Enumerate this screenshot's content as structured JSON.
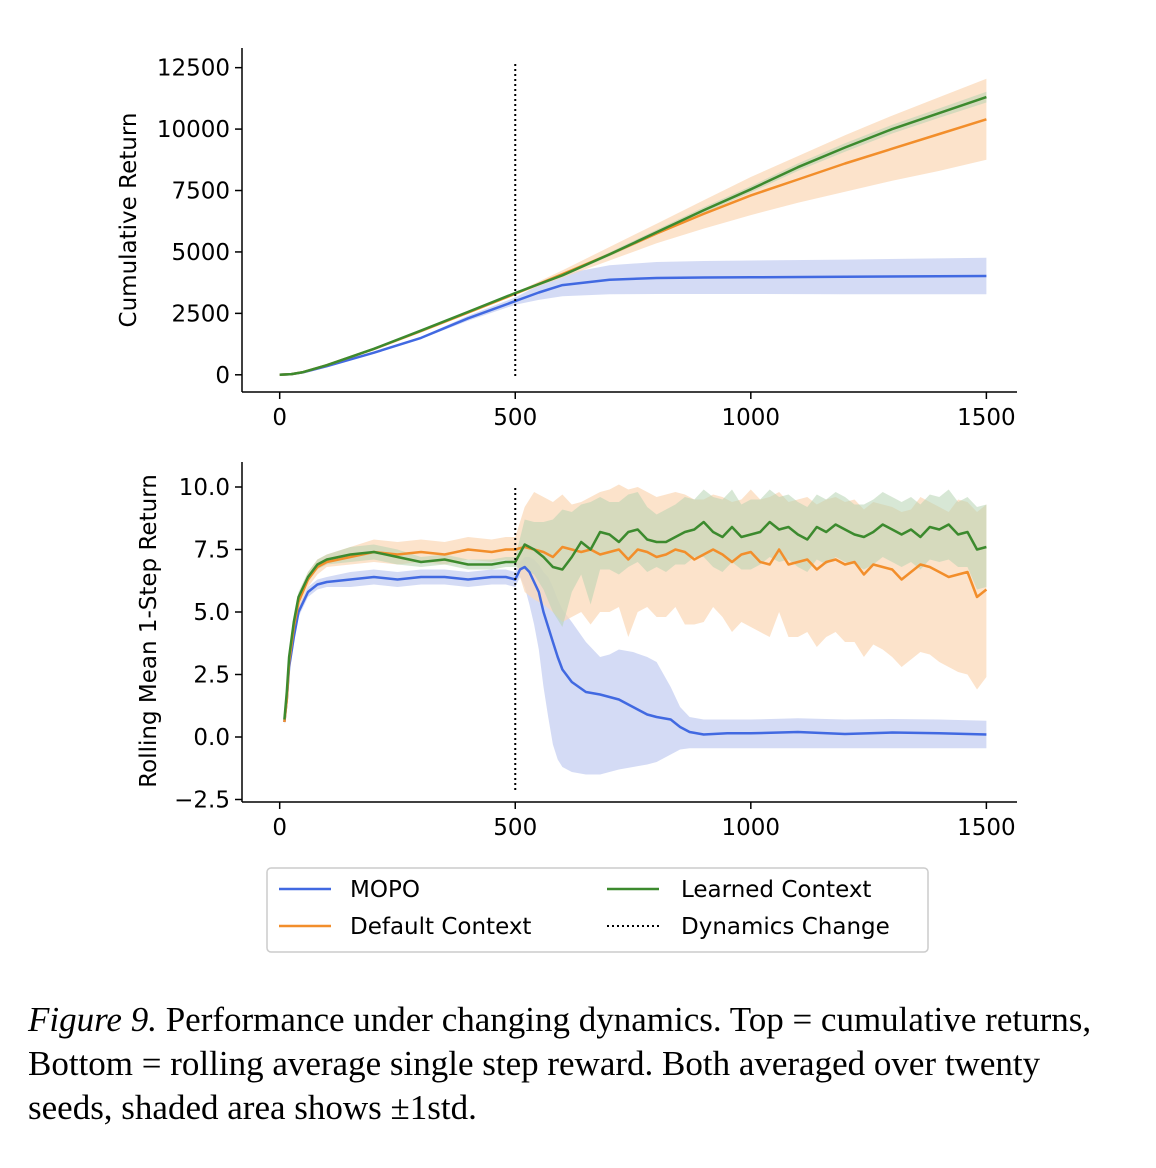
{
  "chart_data": [
    {
      "type": "line",
      "ylabel": "Cumulative Return",
      "xlabel": "",
      "xlim": [
        -80,
        1565
      ],
      "ylim": [
        -700,
        13300
      ],
      "xticks": [
        0,
        500,
        1000,
        1500
      ],
      "yticks": [
        0,
        2500,
        5000,
        7500,
        10000,
        12500
      ],
      "xtick_labels": [
        "0",
        "500",
        "1000",
        "1500"
      ],
      "ytick_labels": [
        "0",
        "2500",
        "5000",
        "7500",
        "10000",
        "12500"
      ],
      "vline": {
        "x": 500,
        "style": "dotted",
        "name": "Dynamics Change"
      },
      "series": [
        {
          "name": "MOPO",
          "color": "#4169e1",
          "x": [
            0,
            25,
            50,
            100,
            200,
            300,
            400,
            500,
            550,
            600,
            700,
            800,
            900,
            1000,
            1200,
            1500
          ],
          "y": [
            0,
            30,
            100,
            350,
            900,
            1500,
            2300,
            3000,
            3350,
            3650,
            3870,
            3940,
            3960,
            3970,
            3990,
            4020
          ],
          "band_lower": [
            0,
            30,
            100,
            340,
            880,
            1460,
            2200,
            2850,
            3050,
            3200,
            3280,
            3290,
            3290,
            3290,
            3280,
            3280
          ],
          "band_upper": [
            0,
            30,
            100,
            360,
            920,
            1540,
            2400,
            3150,
            3650,
            4100,
            4460,
            4590,
            4630,
            4650,
            4690,
            4760
          ]
        },
        {
          "name": "Default Context",
          "color": "#f28e2b",
          "x": [
            0,
            25,
            50,
            100,
            200,
            300,
            400,
            500,
            600,
            700,
            800,
            900,
            1000,
            1100,
            1200,
            1300,
            1400,
            1500
          ],
          "y": [
            0,
            30,
            110,
            390,
            1050,
            1780,
            2530,
            3300,
            4100,
            4900,
            5750,
            6550,
            7300,
            7950,
            8600,
            9200,
            9800,
            10400
          ],
          "band_lower": [
            0,
            30,
            105,
            380,
            1020,
            1740,
            2480,
            3250,
            3950,
            4650,
            5350,
            5950,
            6500,
            7000,
            7450,
            7900,
            8300,
            8750
          ],
          "band_upper": [
            0,
            30,
            115,
            400,
            1080,
            1820,
            2580,
            3350,
            4250,
            5200,
            6150,
            7100,
            8050,
            8900,
            9750,
            10550,
            11300,
            12050
          ]
        },
        {
          "name": "Learned Context",
          "color": "#3c8a2e",
          "x": [
            0,
            25,
            50,
            100,
            200,
            300,
            400,
            500,
            600,
            700,
            800,
            900,
            1000,
            1100,
            1200,
            1300,
            1400,
            1500
          ],
          "y": [
            0,
            30,
            110,
            390,
            1060,
            1800,
            2560,
            3330,
            4050,
            4900,
            5800,
            6700,
            7550,
            8450,
            9250,
            10000,
            10650,
            11300
          ],
          "band_lower": [
            0,
            30,
            108,
            385,
            1050,
            1785,
            2540,
            3300,
            4000,
            4820,
            5700,
            6580,
            7420,
            8300,
            9080,
            9820,
            10460,
            11080
          ],
          "band_upper": [
            0,
            30,
            112,
            395,
            1070,
            1815,
            2580,
            3360,
            4100,
            4980,
            5900,
            6820,
            7680,
            8600,
            9420,
            10180,
            10840,
            11520
          ]
        }
      ]
    },
    {
      "type": "line",
      "ylabel": "Rolling Mean 1-Step Return",
      "xlabel": "",
      "xlim": [
        -80,
        1565
      ],
      "ylim": [
        -2.6,
        11.0
      ],
      "xticks": [
        0,
        500,
        1000,
        1500
      ],
      "yticks": [
        -2.5,
        0.0,
        2.5,
        5.0,
        7.5,
        10.0
      ],
      "xtick_labels": [
        "0",
        "500",
        "1000",
        "1500"
      ],
      "ytick_labels": [
        "−2.5",
        "0.0",
        "2.5",
        "5.0",
        "7.5",
        "10.0"
      ],
      "vline": {
        "x": 500,
        "style": "dotted",
        "name": "Dynamics Change"
      },
      "series": [
        {
          "name": "MOPO",
          "color": "#4169e1",
          "x": [
            10,
            15,
            20,
            30,
            40,
            60,
            80,
            100,
            150,
            200,
            250,
            300,
            350,
            400,
            450,
            480,
            500,
            510,
            520,
            530,
            540,
            550,
            560,
            570,
            580,
            590,
            600,
            620,
            650,
            680,
            700,
            720,
            750,
            780,
            800,
            830,
            850,
            870,
            900,
            950,
            1000,
            1100,
            1200,
            1300,
            1400,
            1500
          ],
          "y": [
            0.6,
            1.5,
            2.8,
            4.0,
            5.0,
            5.8,
            6.1,
            6.2,
            6.3,
            6.4,
            6.3,
            6.4,
            6.4,
            6.3,
            6.4,
            6.4,
            6.3,
            6.7,
            6.8,
            6.6,
            6.2,
            5.8,
            5.0,
            4.4,
            3.8,
            3.2,
            2.7,
            2.2,
            1.8,
            1.7,
            1.6,
            1.5,
            1.2,
            0.9,
            0.8,
            0.7,
            0.4,
            0.2,
            0.1,
            0.15,
            0.15,
            0.2,
            0.12,
            0.18,
            0.15,
            0.1
          ],
          "band_lower": [
            0.5,
            1.3,
            2.6,
            3.8,
            4.8,
            5.6,
            5.9,
            6.0,
            6.0,
            6.1,
            6.0,
            6.1,
            6.1,
            6.0,
            6.1,
            6.1,
            6.0,
            6.4,
            6.0,
            5.3,
            4.5,
            3.5,
            2.0,
            0.8,
            -0.3,
            -0.9,
            -1.2,
            -1.4,
            -1.5,
            -1.5,
            -1.4,
            -1.3,
            -1.2,
            -1.1,
            -1.0,
            -0.7,
            -0.5,
            -0.45,
            -0.45,
            -0.45,
            -0.45,
            -0.45,
            -0.45,
            -0.45,
            -0.45,
            -0.45
          ],
          "band_upper": [
            0.7,
            1.7,
            3.0,
            4.2,
            5.2,
            6.0,
            6.3,
            6.4,
            6.6,
            6.7,
            6.6,
            6.7,
            6.7,
            6.6,
            6.7,
            6.7,
            6.6,
            7.0,
            7.2,
            7.2,
            7.1,
            6.9,
            6.6,
            6.4,
            6.0,
            5.5,
            5.1,
            4.6,
            3.8,
            3.2,
            3.3,
            3.5,
            3.4,
            3.2,
            3.0,
            2.0,
            1.2,
            0.8,
            0.7,
            0.7,
            0.7,
            0.75,
            0.7,
            0.72,
            0.7,
            0.65
          ]
        },
        {
          "name": "Default Context",
          "color": "#f28e2b",
          "x": [
            10,
            15,
            20,
            30,
            40,
            60,
            80,
            100,
            150,
            200,
            250,
            300,
            350,
            400,
            450,
            480,
            500,
            520,
            540,
            560,
            580,
            600,
            620,
            640,
            660,
            680,
            700,
            720,
            740,
            760,
            780,
            800,
            820,
            840,
            860,
            880,
            900,
            920,
            940,
            960,
            980,
            1000,
            1020,
            1040,
            1060,
            1080,
            1100,
            1120,
            1140,
            1160,
            1180,
            1200,
            1220,
            1240,
            1260,
            1280,
            1300,
            1320,
            1340,
            1360,
            1380,
            1400,
            1420,
            1440,
            1460,
            1480,
            1500
          ],
          "y": [
            0.6,
            1.5,
            3.0,
            4.4,
            5.4,
            6.3,
            6.8,
            7.0,
            7.2,
            7.4,
            7.3,
            7.4,
            7.3,
            7.5,
            7.4,
            7.5,
            7.5,
            7.6,
            7.5,
            7.4,
            7.2,
            7.6,
            7.5,
            7.4,
            7.5,
            7.3,
            7.4,
            7.5,
            7.1,
            7.5,
            7.4,
            7.2,
            7.3,
            7.5,
            7.4,
            7.1,
            7.3,
            7.5,
            7.3,
            7.0,
            7.3,
            7.4,
            7.0,
            6.9,
            7.5,
            6.9,
            7.0,
            7.1,
            6.7,
            7.0,
            7.1,
            6.9,
            7.0,
            6.5,
            6.9,
            6.8,
            6.7,
            6.3,
            6.6,
            6.9,
            6.8,
            6.6,
            6.4,
            6.5,
            6.6,
            5.6,
            5.9
          ],
          "band_lower": [
            0.5,
            1.3,
            2.7,
            4.1,
            5.1,
            6.0,
            6.5,
            6.8,
            6.9,
            7.0,
            6.9,
            7.0,
            6.9,
            7.1,
            7.0,
            7.1,
            7.0,
            5.8,
            5.5,
            5.3,
            5.0,
            4.6,
            4.8,
            5.0,
            4.5,
            5.0,
            5.0,
            5.2,
            4.0,
            5.0,
            5.2,
            4.8,
            4.8,
            5.2,
            4.5,
            4.5,
            4.6,
            5.2,
            4.8,
            4.2,
            4.6,
            4.4,
            4.2,
            4.0,
            5.0,
            4.0,
            4.0,
            4.2,
            3.6,
            4.0,
            4.2,
            3.8,
            3.8,
            3.2,
            3.7,
            3.5,
            3.2,
            2.8,
            3.1,
            3.4,
            3.3,
            3.0,
            2.8,
            2.6,
            2.5,
            1.9,
            2.4
          ],
          "band_upper": [
            0.7,
            1.7,
            3.3,
            4.7,
            5.7,
            6.6,
            7.1,
            7.3,
            7.6,
            7.9,
            7.8,
            7.9,
            7.8,
            8.0,
            7.9,
            8.0,
            8.0,
            9.2,
            9.8,
            9.6,
            9.4,
            9.7,
            9.3,
            9.4,
            9.6,
            9.8,
            9.9,
            10.1,
            9.9,
            10.0,
            9.8,
            9.6,
            9.7,
            9.8,
            9.7,
            9.5,
            9.5,
            9.7,
            9.6,
            9.4,
            9.5,
            9.9,
            9.5,
            9.6,
            9.8,
            9.4,
            9.5,
            9.6,
            9.3,
            9.5,
            9.6,
            9.4,
            9.5,
            9.1,
            9.4,
            9.3,
            9.2,
            9.0,
            9.1,
            9.6,
            9.4,
            9.2,
            9.0,
            9.5,
            9.4,
            9.0,
            9.3
          ]
        },
        {
          "name": "Learned Context",
          "color": "#3c8a2e",
          "x": [
            10,
            15,
            20,
            30,
            40,
            60,
            80,
            100,
            150,
            200,
            250,
            300,
            350,
            400,
            450,
            480,
            500,
            520,
            540,
            560,
            580,
            600,
            620,
            640,
            660,
            680,
            700,
            720,
            740,
            760,
            780,
            800,
            820,
            840,
            860,
            880,
            900,
            920,
            940,
            960,
            980,
            1000,
            1020,
            1040,
            1060,
            1080,
            1100,
            1120,
            1140,
            1160,
            1180,
            1200,
            1220,
            1240,
            1260,
            1280,
            1300,
            1320,
            1340,
            1360,
            1380,
            1400,
            1420,
            1440,
            1460,
            1480,
            1500
          ],
          "y": [
            0.7,
            1.8,
            3.2,
            4.6,
            5.6,
            6.4,
            6.9,
            7.1,
            7.3,
            7.4,
            7.2,
            7.0,
            7.1,
            6.9,
            6.9,
            7.0,
            7.0,
            7.7,
            7.5,
            7.2,
            6.8,
            6.7,
            7.2,
            7.8,
            7.5,
            8.2,
            8.1,
            7.8,
            8.2,
            8.3,
            7.9,
            7.8,
            7.8,
            8.0,
            8.2,
            8.3,
            8.6,
            8.2,
            8.0,
            8.4,
            8.0,
            8.1,
            8.2,
            8.6,
            8.3,
            8.4,
            8.1,
            7.9,
            8.4,
            8.2,
            8.5,
            8.3,
            8.1,
            8.0,
            8.2,
            8.5,
            8.3,
            8.1,
            8.3,
            8.0,
            8.4,
            8.3,
            8.5,
            8.1,
            8.2,
            7.5,
            7.6
          ],
          "band_lower": [
            0.6,
            1.6,
            3.0,
            4.4,
            5.4,
            6.2,
            6.7,
            6.9,
            7.0,
            7.1,
            6.9,
            6.8,
            6.9,
            6.7,
            6.7,
            6.8,
            6.8,
            6.7,
            6.5,
            5.9,
            5.0,
            4.4,
            5.8,
            6.5,
            5.3,
            6.7,
            6.7,
            6.5,
            6.8,
            7.0,
            6.6,
            6.8,
            6.6,
            6.9,
            6.9,
            7.2,
            7.2,
            6.8,
            6.6,
            7.0,
            6.7,
            6.7,
            6.9,
            7.2,
            7.0,
            7.1,
            6.8,
            6.6,
            7.1,
            6.9,
            7.2,
            7.0,
            6.9,
            6.7,
            6.9,
            7.2,
            7.0,
            6.8,
            7.0,
            6.7,
            7.1,
            7.0,
            7.1,
            6.8,
            6.8,
            5.9,
            6.0
          ],
          "band_upper": [
            0.8,
            2.0,
            3.4,
            4.8,
            5.8,
            6.6,
            7.1,
            7.3,
            7.6,
            7.7,
            7.5,
            7.2,
            7.3,
            7.1,
            7.1,
            7.2,
            7.2,
            8.7,
            8.6,
            8.6,
            8.7,
            9.1,
            9.0,
            9.3,
            9.4,
            9.6,
            9.4,
            9.4,
            9.7,
            9.8,
            9.2,
            8.9,
            9.1,
            9.3,
            9.6,
            9.5,
            9.9,
            9.6,
            9.5,
            9.9,
            9.3,
            9.5,
            9.5,
            9.9,
            9.6,
            9.7,
            9.4,
            9.2,
            9.7,
            9.5,
            9.8,
            9.6,
            9.3,
            9.3,
            9.5,
            9.8,
            9.6,
            9.4,
            9.6,
            9.3,
            9.7,
            9.6,
            9.9,
            9.4,
            9.6,
            9.2,
            9.3
          ]
        }
      ]
    }
  ],
  "legend": {
    "placement": "below",
    "entries": [
      {
        "label": "MOPO",
        "color": "#4169e1",
        "style": "solid"
      },
      {
        "label": "Default Context",
        "color": "#f28e2b",
        "style": "solid"
      },
      {
        "label": "Learned Context",
        "color": "#3c8a2e",
        "style": "solid"
      },
      {
        "label": "Dynamics Change",
        "color": "#000000",
        "style": "dotted"
      }
    ]
  },
  "caption": {
    "label": "Figure 9.",
    "text": " Performance under changing dynamics. Top = cumulative returns, Bottom = rolling average single step reward. Both averaged over twenty seeds, shaded area shows ±1std."
  }
}
